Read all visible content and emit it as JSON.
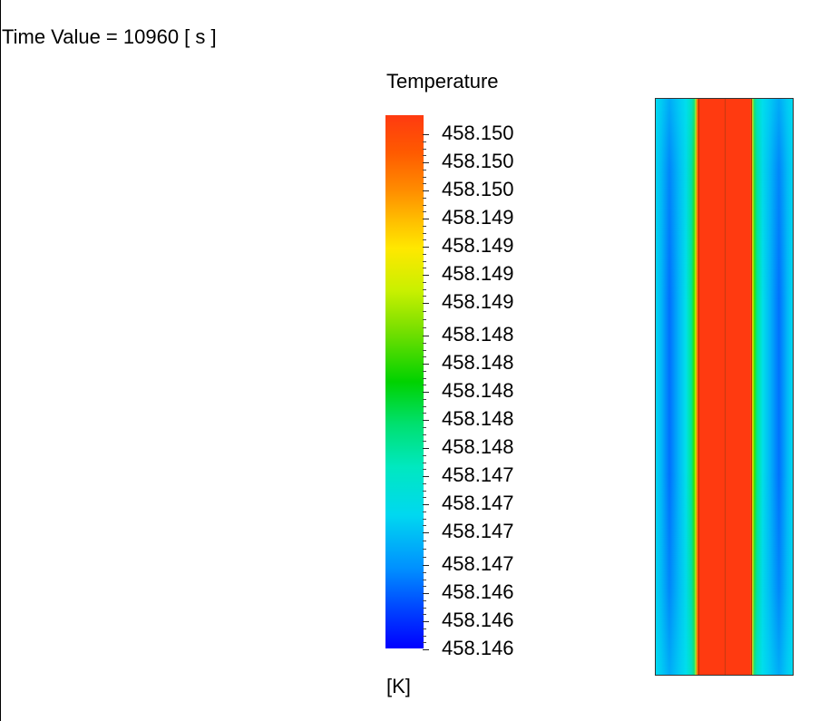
{
  "header": {
    "time_value": "Time Value = 10960 [ s ]"
  },
  "legend": {
    "title": "Temperature",
    "unit": "[K]",
    "labels": [
      "458.150",
      "458.150",
      "458.150",
      "458.149",
      "458.149",
      "458.149",
      "458.149",
      "458.148",
      "458.148",
      "458.148",
      "458.148",
      "458.148",
      "458.147",
      "458.147",
      "458.147",
      "458.147",
      "458.146",
      "458.146",
      "458.146"
    ]
  },
  "colors": {
    "hot": "#ff3a10",
    "cold": "#0000ff",
    "mid": "#00d200"
  }
}
